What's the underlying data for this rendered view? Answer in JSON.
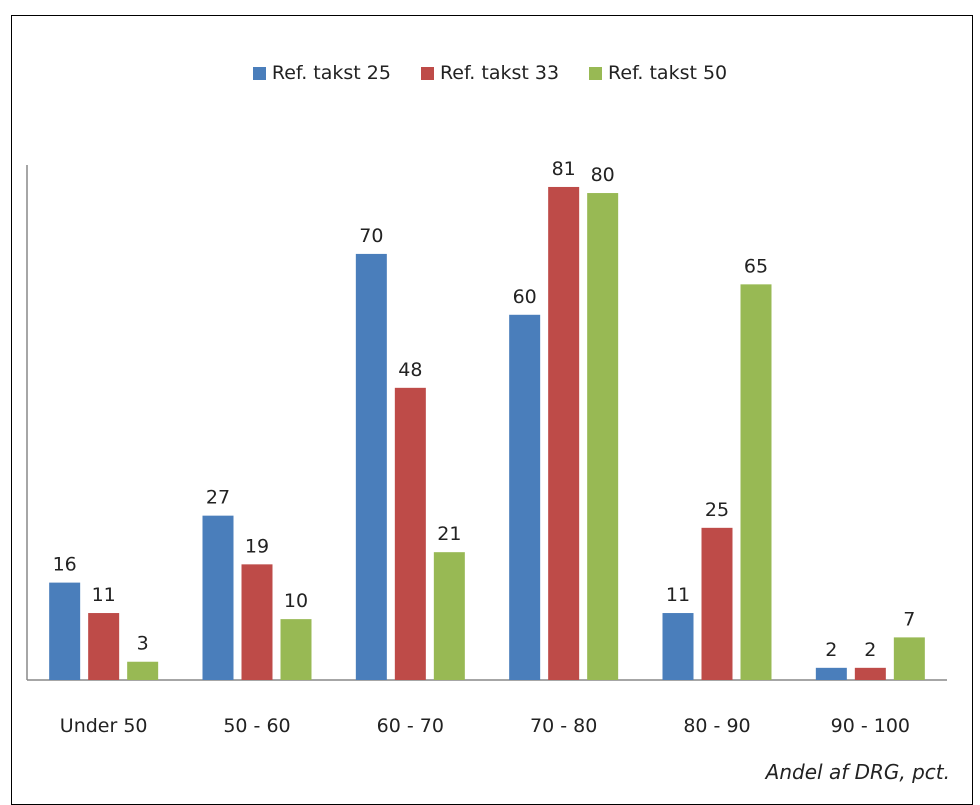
{
  "chart_data": {
    "type": "bar",
    "categories": [
      "Under 50",
      "50 - 60",
      "60 - 70",
      "70 - 80",
      "80 - 90",
      "90 - 100"
    ],
    "series": [
      {
        "name": "Ref. takst 25",
        "color": "#4a7ebb",
        "values": [
          16,
          27,
          70,
          60,
          11,
          2
        ]
      },
      {
        "name": "Ref. takst 33",
        "color": "#be4b48",
        "values": [
          11,
          19,
          48,
          81,
          25,
          2
        ]
      },
      {
        "name": "Ref. takst 50",
        "color": "#98b954",
        "values": [
          3,
          10,
          21,
          80,
          65,
          7
        ]
      }
    ],
    "xlabel": "Andel af DRG, pct.",
    "ylim": [
      0,
      92
    ],
    "legend_position": "top-center",
    "grid": false
  }
}
